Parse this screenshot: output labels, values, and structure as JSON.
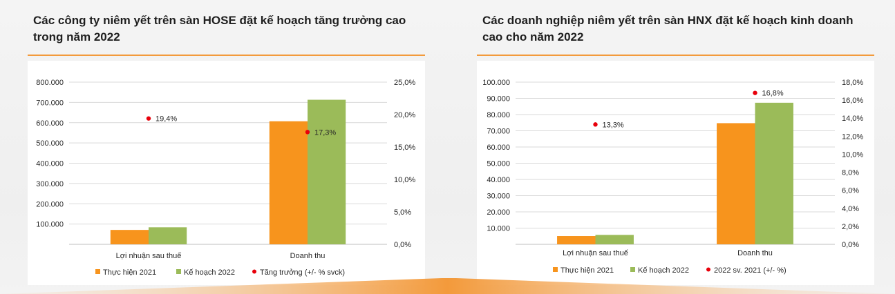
{
  "charts": [
    {
      "title": "Các công ty niêm yết trên sàn HOSE đặt kế hoạch tăng trưởng cao trong năm 2022",
      "categories": [
        "Lợi nhuận sau thuế",
        "Doanh thu"
      ],
      "left_ticks": [
        "100.000",
        "200.000",
        "300.000",
        "400.000",
        "500.000",
        "600.000",
        "700.000",
        "800.000"
      ],
      "right_ticks": [
        "0,0%",
        "5,0%",
        "10,0%",
        "15,0%",
        "20,0%",
        "25,0%"
      ],
      "point_labels": [
        "19,4%",
        "17,3%"
      ],
      "legend": [
        "Thực hiện 2021",
        "Kế hoạch 2022",
        "Tăng trưởng (+/- % svck)"
      ]
    },
    {
      "title": "Các doanh nghiệp niêm yết trên sàn HNX đặt kế hoạch kinh doanh cao cho năm 2022",
      "categories": [
        "Lợi nhuận sau thuế",
        "Doanh thu"
      ],
      "left_ticks": [
        "10.000",
        "20.000",
        "30.000",
        "40.000",
        "50.000",
        "60.000",
        "70.000",
        "80.000",
        "90.000",
        "100.000"
      ],
      "right_ticks": [
        "0,0%",
        "2,0%",
        "4,0%",
        "6,0%",
        "8,0%",
        "10,0%",
        "12,0%",
        "14,0%",
        "16,0%",
        "18,0%"
      ],
      "point_labels": [
        "13,3%",
        "16,8%"
      ],
      "legend": [
        "Thực hiện 2021",
        "Kế hoạch 2022",
        "2022 sv. 2021 (+/- %)"
      ]
    }
  ],
  "chart_data": [
    {
      "type": "bar",
      "categories": [
        "Lợi nhuận sau thuế",
        "Doanh thu"
      ],
      "series": [
        {
          "name": "Thực hiện 2021",
          "values": [
            71000,
            607000
          ],
          "axis": "left",
          "color": "#f7941d"
        },
        {
          "name": "Kế hoạch 2022",
          "values": [
            84000,
            713000
          ],
          "axis": "left",
          "color": "#9bbb59"
        },
        {
          "name": "Tăng trưởng (+/- % svck)",
          "type": "scatter",
          "values": [
            19.4,
            17.3
          ],
          "axis": "right",
          "color": "#e8000b"
        }
      ],
      "ylim_left": [
        0,
        800000
      ],
      "ylim_right": [
        0,
        25
      ],
      "legend_position": "bottom",
      "grid": true
    },
    {
      "type": "bar",
      "categories": [
        "Lợi nhuận sau thuế",
        "Doanh thu"
      ],
      "series": [
        {
          "name": "Thực hiện 2021",
          "values": [
            5100,
            74700
          ],
          "axis": "left",
          "color": "#f7941d"
        },
        {
          "name": "Kế hoạch 2022",
          "values": [
            5800,
            87300
          ],
          "axis": "left",
          "color": "#9bbb59"
        },
        {
          "name": "2022 sv. 2021 (+/- %)",
          "type": "scatter",
          "values": [
            13.3,
            16.8
          ],
          "axis": "right",
          "color": "#e8000b"
        }
      ],
      "ylim_left": [
        0,
        100000
      ],
      "ylim_right": [
        0,
        18
      ],
      "legend_position": "bottom",
      "grid": true
    }
  ],
  "colors": {
    "accent": "#f39a3b",
    "bar_2021": "#f7941d",
    "bar_2022": "#9bbb59",
    "point": "#e8000b"
  }
}
